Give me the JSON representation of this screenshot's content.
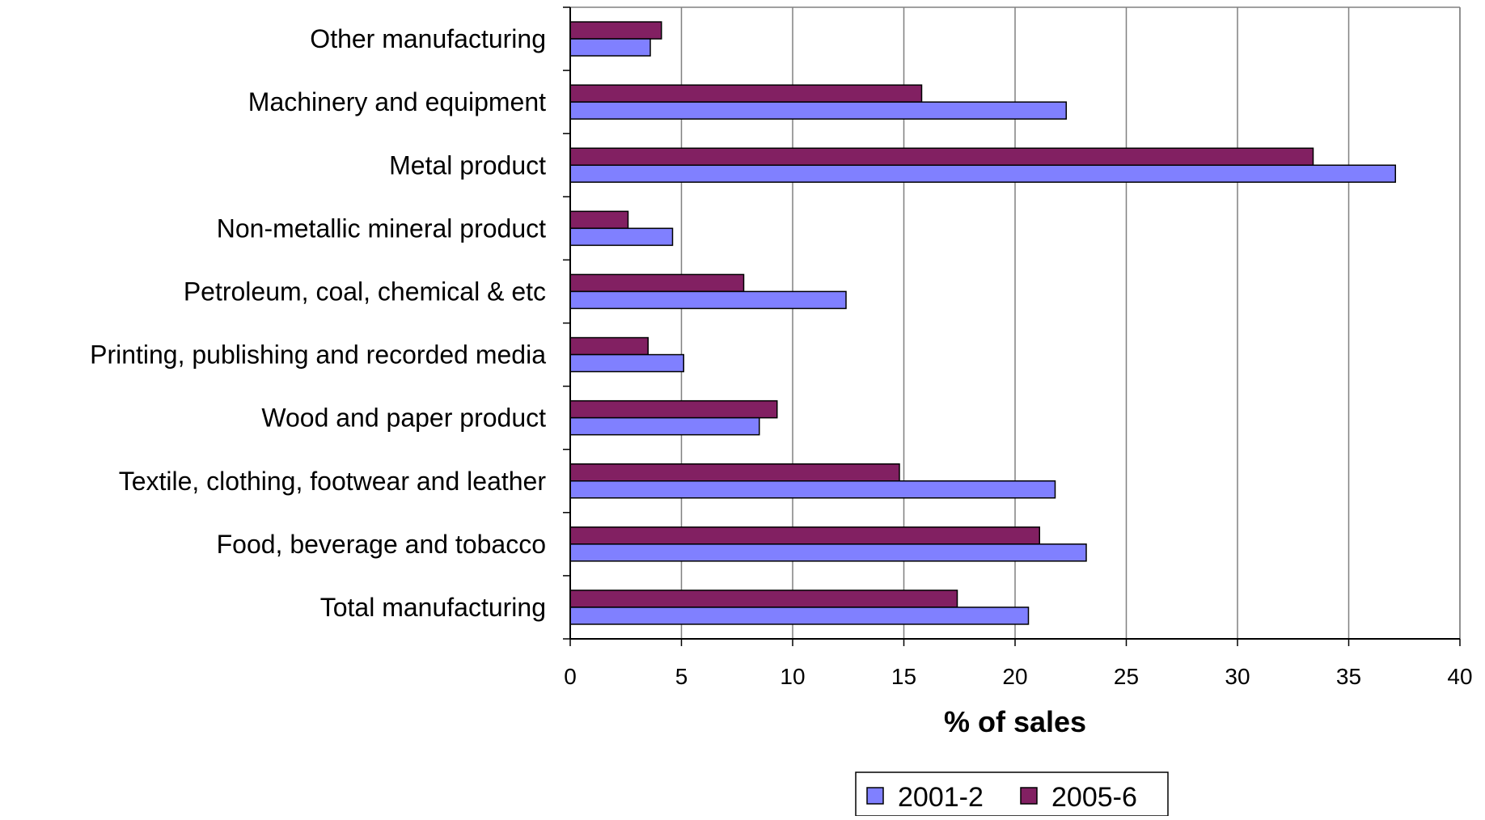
{
  "chart_data": {
    "type": "bar",
    "orientation": "horizontal",
    "categories": [
      "Total manufacturing",
      "Food, beverage and tobacco",
      "Textile, clothing, footwear and leather",
      "Wood and paper product",
      "Printing, publishing and recorded media",
      "Petroleum, coal, chemical & etc",
      "Non-metallic mineral product",
      "Metal product",
      "Machinery and equipment",
      "Other manufacturing"
    ],
    "series": [
      {
        "name": "2001-2",
        "color": "#8080FF",
        "values": [
          20.6,
          23.2,
          21.8,
          8.5,
          5.1,
          12.4,
          4.6,
          37.1,
          22.3,
          3.6
        ]
      },
      {
        "name": "2005-6",
        "color": "#822062",
        "values": [
          17.4,
          21.1,
          14.8,
          9.3,
          3.5,
          7.8,
          2.6,
          33.4,
          15.8,
          4.1
        ]
      }
    ],
    "xlabel": "% of sales",
    "ylabel": "",
    "title": "",
    "xlim": [
      0,
      40
    ],
    "xticks": [
      "0",
      "5",
      "10",
      "15",
      "20",
      "25",
      "30",
      "35",
      "40"
    ],
    "grid": "vertical",
    "legend_position": "bottom"
  }
}
